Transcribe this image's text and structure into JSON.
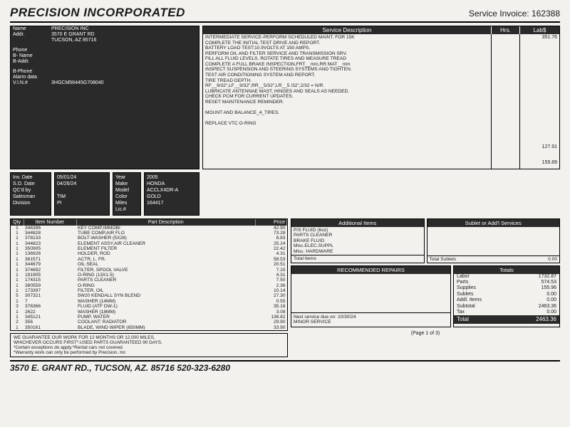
{
  "header": {
    "company": "PRECISION INCORPORATED",
    "invoice_label": "Service Invoice:",
    "invoice_no": "162388"
  },
  "cust": {
    "name_l": "Name",
    "name": "PRECISION INC",
    "addr_l": "Addr.",
    "addr1": "3570 E GRANT RD",
    "addr2": "TUCSON, AZ 85716",
    "phone_l": "Phone",
    "bname_l": "B- Name",
    "baddr_l": "B-Addr.",
    "bphone_l": "B-Phone",
    "alarm_l": "Alarm data",
    "vin_l": "V.I.N.#",
    "vin": "3HGCM56445G708040"
  },
  "meta": {
    "inv_l": "Inv. Date",
    "inv": "05/01/24",
    "so_l": "S.O. Date",
    "so": "04/26/24",
    "qc_l": "QC'd by",
    "sales_l": "Salesman",
    "sales": "TIM",
    "div_l": "Division",
    "div": "PI",
    "yr_l": "Year",
    "yr": "2005",
    "mk_l": "Make",
    "mk": "HONDA",
    "md_l": "Model",
    "md": "ACCLX4DR-A",
    "co_l": "Color",
    "co": "GOLD",
    "mi_l": "Miles",
    "mi": "164417",
    "lic_l": "Lic.#"
  },
  "svc": {
    "h1": "Service Description",
    "h2": "Hrs.",
    "h3": "Lab$",
    "lines": [
      "INTERMEDIATE SERVICE-PERFORM SCHEDULED MAINT. FOR 15K",
      "COMPLETE THE INITIAL TEST DRIVE AND REPORT.",
      "BATTERY LOAD TEST:10.9VOLTS AT 150 AMPS.",
      "PERFORM OIL AND FILTER SERVICE AND TRANSMISSION SRV.",
      "FILL ALL FLUID LEVELS. ROTATE TIRES AND MEASURE TREAD",
      "COMPLETE A FULL BRAKE INSPECTION,FRT__mm,RR MAT__mm",
      "INSPECT SUSPENSION AND STEERING SYSTEMS AND TIGHTEN.",
      "TEST AIR CONDITIONING SYSTEM AND REPORT.",
      "TIRE TREAD DEPTH.",
      "RF__9/32\",LF__9/32\",RR__5/32\",LR__5 /32\",2/32 = N/R.",
      "LUBRICATE ANTENNAE MAST, HINGES AND SEALS AS NEEDED.",
      "CHECK PCM FOR CURRENT UPDATES.",
      "RESET MAINTENANCE REMINDER.",
      "",
      "MOUNT AND BALANCE_4_TIRES.",
      "",
      "REPLACE VTC O-RING"
    ],
    "labs": [
      "351.76",
      "",
      "",
      "",
      "",
      "",
      "",
      "",
      "",
      "",
      "",
      "",
      "",
      "",
      "127.91",
      "",
      "159.89"
    ]
  },
  "parts": {
    "hq": "Qty",
    "hn": "Item Number",
    "hd": "Part Description",
    "hp": "Price",
    "rows": [
      [
        "1",
        "346396",
        "KEY COMP,IMMOBI",
        "42.90"
      ],
      [
        "1",
        "344828",
        "TUBE COMP,AIR FLO",
        "73.28"
      ],
      [
        "1",
        "378133",
        "BOLT-WASHER (5X28)",
        "8.83"
      ],
      [
        "1",
        "344823",
        "ELEMENT ASSY,AIR CLEANER",
        "25.24"
      ],
      [
        "1",
        "350905",
        "ELEMENT FILTER",
        "22.42"
      ],
      [
        "1",
        "136926",
        "HOLDER, ROD",
        "4.31"
      ],
      [
        "1",
        "361571",
        "ACTR, L. FR.",
        "58.53"
      ],
      [
        "1",
        "344679",
        "OIL SEAL",
        "20.51"
      ],
      [
        "1",
        "374692",
        "FILTER, SPOOL VALVE",
        "7.15"
      ],
      [
        "1",
        "191905",
        "O-RING (13X1.5)",
        "4.31"
      ],
      [
        "1",
        "174315",
        "PARTS CLEANER",
        "7.50"
      ],
      [
        "1",
        "380559",
        "O-RING",
        "2.36"
      ],
      [
        "1",
        "173397",
        "FILTER, OIL",
        "10.14"
      ],
      [
        "5",
        "307321",
        "5W20 KENDALL SYN BLEND",
        "27.30"
      ],
      [
        "1",
        "7",
        "WASHER (14MM)",
        "0.55"
      ],
      [
        "3",
        "376366",
        "FLUID (ATF DW-1)",
        "35.16"
      ],
      [
        "1",
        "2622",
        "WASHER (18MM)",
        "3.08"
      ],
      [
        "1",
        "345121",
        "PUMP, WATER",
        "136.82"
      ],
      [
        "2",
        "356",
        "COOLANT: RADIATOR",
        "29.90"
      ],
      [
        "1",
        "350161",
        "BLADE, WIND WIPER (650MM)",
        "33.90"
      ]
    ]
  },
  "addl": {
    "h1": "Additional Items",
    "h2": "Sublet or Add'l Services",
    "items": [
      "P/S FLUID (6oz)",
      "PARTS CLEANER",
      "BRAKE FLUID",
      "Misc.ELEC.SUPPL",
      "Misc. HARDWARE"
    ],
    "ti_l": "Total Items",
    "ts_l": "Total Sublets",
    "ts_v": "0.00"
  },
  "rec": {
    "h": "RECOMMENDED REPAIRS"
  },
  "nxt": {
    "l1": "Next service due on: 10/30/24",
    "l2": "MINOR SERVICE"
  },
  "tot": {
    "h": "Totals",
    "rows": [
      [
        "Labor",
        "1732.87"
      ],
      [
        "Parts",
        "574.53"
      ],
      [
        "Supplies",
        "155.96"
      ],
      [
        "Sublets",
        "0.00"
      ],
      [
        "Addl. Items",
        "0.00"
      ],
      [
        "Subtotal",
        "2463.36"
      ],
      [
        "Tax",
        "0.00"
      ]
    ],
    "g_l": "Total",
    "g_v": "2463.36"
  },
  "page": "(Page 1 of 3)",
  "guar": [
    "WE GUARANTEE OUR WORK FOR 12 MONTHS OR 12,000 MILES,",
    "WHICHEVER OCCURS FIRST*.USED PARTS GUARANTEED 90 DAYS.",
    "*Certain exceptions do apply.*Rental cars not covered.",
    "*Warranty work can only be performed by Precision, Inc"
  ],
  "footer": "3570 E. GRANT RD., TUCSON, AZ. 85716   520-323-6280"
}
